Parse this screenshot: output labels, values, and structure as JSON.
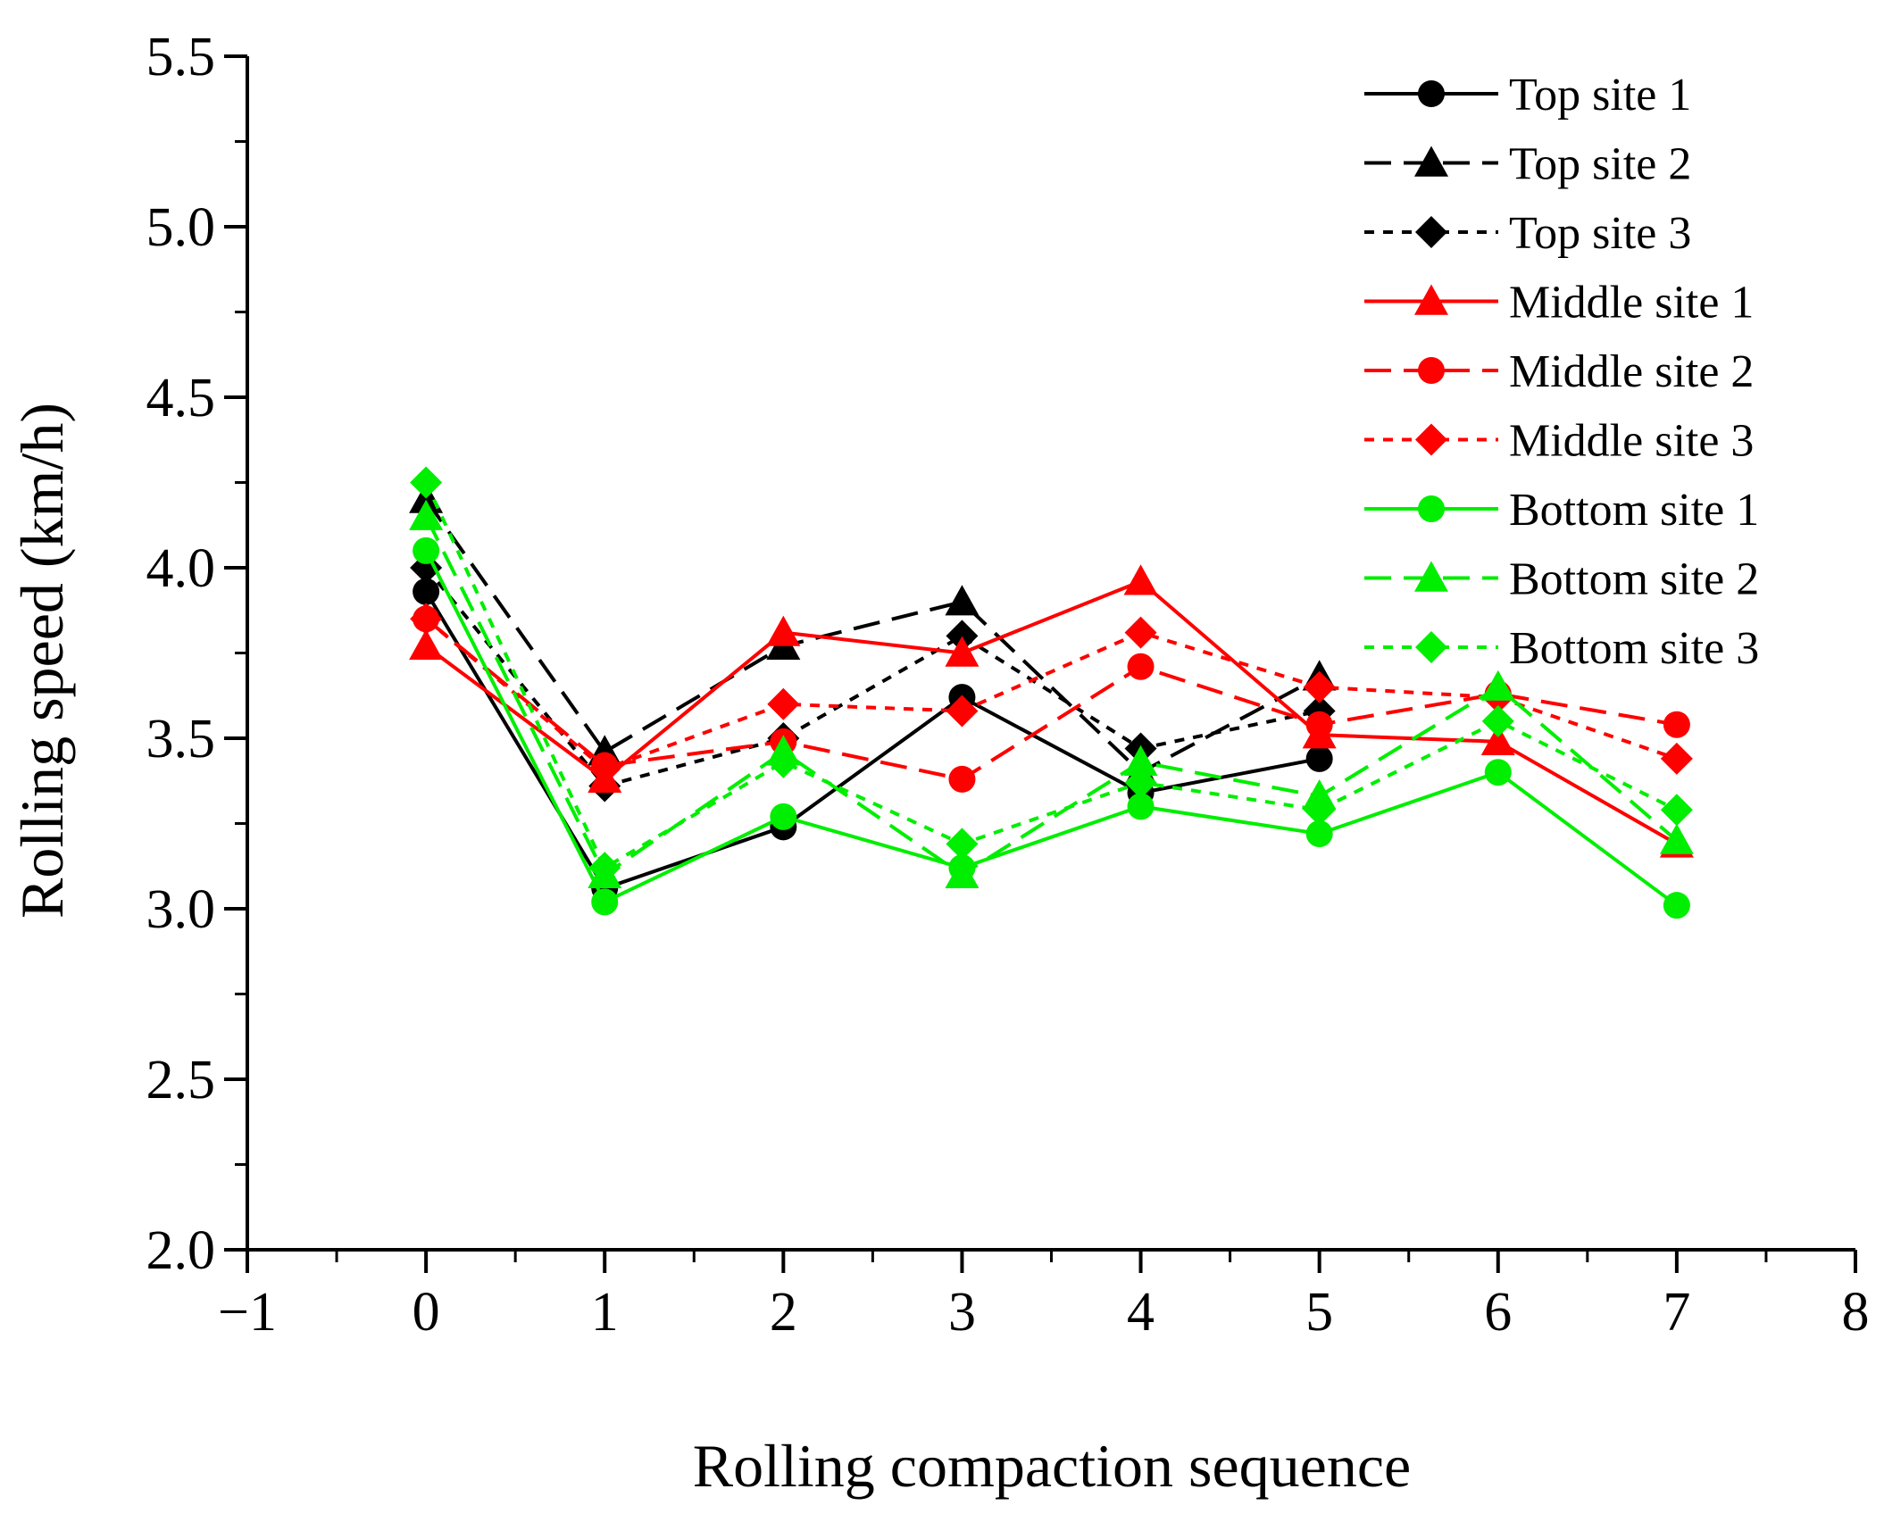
{
  "chart_data": {
    "type": "line",
    "xlabel": "Rolling compaction sequence",
    "ylabel": "Rolling speed (km/h)",
    "xlim": [
      -1,
      8
    ],
    "ylim": [
      2.0,
      5.5
    ],
    "x_ticks": [
      -1,
      0,
      1,
      2,
      3,
      4,
      5,
      6,
      7,
      8
    ],
    "x_tick_labels": [
      "−1",
      "0",
      "1",
      "2",
      "3",
      "4",
      "5",
      "6",
      "7",
      "8"
    ],
    "y_ticks": [
      2.0,
      2.5,
      3.0,
      3.5,
      4.0,
      4.5,
      5.0,
      5.5
    ],
    "y_tick_labels": [
      "2.0",
      "2.5",
      "3.0",
      "3.5",
      "4.0",
      "4.5",
      "5.0",
      "5.5"
    ],
    "grid": false,
    "legend_position": "top-right",
    "series": [
      {
        "name": "Top site 1",
        "color": "#000000",
        "dash": "solid",
        "marker": "circle",
        "x": [
          0,
          1,
          2,
          3,
          4,
          5
        ],
        "values": [
          3.93,
          3.06,
          3.24,
          3.62,
          3.34,
          3.44
        ]
      },
      {
        "name": "Top site 2",
        "color": "#000000",
        "dash": "dashed",
        "marker": "triangle",
        "x": [
          0,
          1,
          2,
          3,
          4,
          5
        ],
        "values": [
          4.2,
          3.46,
          3.77,
          3.9,
          3.4,
          3.68
        ]
      },
      {
        "name": "Top site 3",
        "color": "#000000",
        "dash": "dotted",
        "marker": "diamond",
        "x": [
          0,
          1,
          2,
          3,
          4,
          5
        ],
        "values": [
          4.0,
          3.36,
          3.5,
          3.8,
          3.47,
          3.58
        ]
      },
      {
        "name": "Middle site 1",
        "color": "#ff0000",
        "dash": "solid",
        "marker": "triangle",
        "x": [
          0,
          1,
          2,
          3,
          4,
          5,
          6,
          7
        ],
        "values": [
          3.77,
          3.38,
          3.81,
          3.75,
          3.96,
          3.51,
          3.49,
          3.19
        ]
      },
      {
        "name": "Middle site 2",
        "color": "#ff0000",
        "dash": "dashed",
        "marker": "circle",
        "x": [
          0,
          1,
          2,
          3,
          4,
          5,
          6,
          7
        ],
        "values": [
          3.85,
          3.42,
          3.49,
          3.38,
          3.71,
          3.54,
          3.63,
          3.54
        ]
      },
      {
        "name": "Middle site 3",
        "color": "#ff0000",
        "dash": "dotted",
        "marker": "diamond",
        "x": [
          0,
          1,
          2,
          3,
          4,
          5,
          6,
          7
        ],
        "values": [
          3.85,
          3.41,
          3.6,
          3.58,
          3.81,
          3.65,
          3.62,
          3.44
        ]
      },
      {
        "name": "Bottom site 1",
        "color": "#00ee00",
        "dash": "solid",
        "marker": "circle",
        "x": [
          0,
          1,
          2,
          3,
          4,
          5,
          6,
          7
        ],
        "values": [
          4.05,
          3.02,
          3.27,
          3.12,
          3.3,
          3.22,
          3.4,
          3.01
        ]
      },
      {
        "name": "Bottom site 2",
        "color": "#00ee00",
        "dash": "dashed",
        "marker": "triangle",
        "x": [
          0,
          1,
          2,
          3,
          4,
          5,
          6,
          7
        ],
        "values": [
          4.15,
          3.1,
          3.46,
          3.1,
          3.43,
          3.33,
          3.65,
          3.2
        ]
      },
      {
        "name": "Bottom site 3",
        "color": "#00ee00",
        "dash": "dotted",
        "marker": "diamond",
        "x": [
          0,
          1,
          2,
          3,
          4,
          5,
          6,
          7
        ],
        "values": [
          4.25,
          3.12,
          3.43,
          3.19,
          3.37,
          3.29,
          3.55,
          3.29
        ]
      }
    ]
  }
}
